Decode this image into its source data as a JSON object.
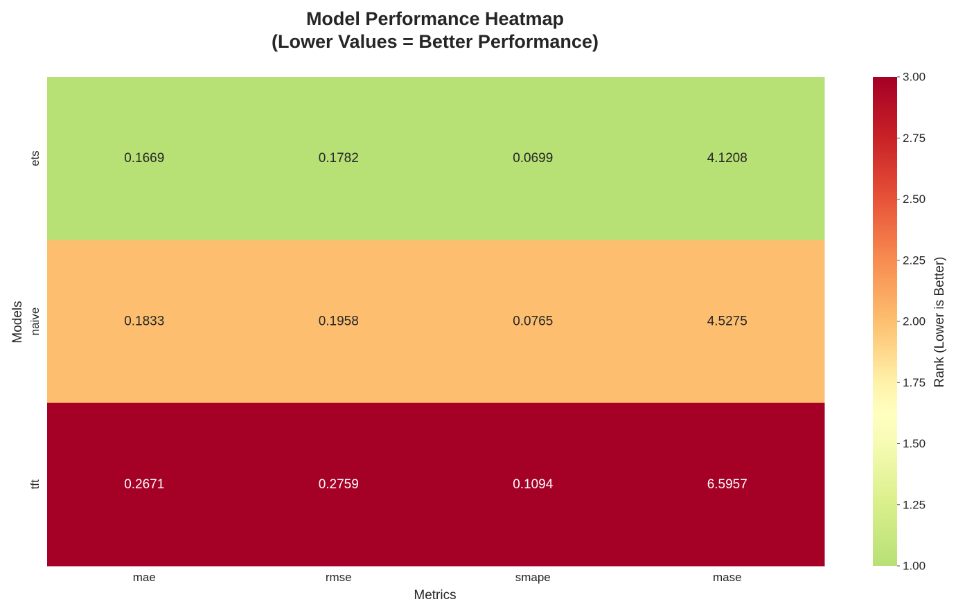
{
  "chart_data": {
    "type": "heatmap",
    "title_lines": [
      "Model Performance Heatmap",
      "(Lower Values = Better Performance)"
    ],
    "xlabel": "Metrics",
    "ylabel": "Models",
    "x_categories": [
      "mae",
      "rmse",
      "smape",
      "mase"
    ],
    "y_categories": [
      "ets",
      "naive",
      "tft"
    ],
    "values": [
      [
        0.1669,
        0.1782,
        0.0699,
        4.1208
      ],
      [
        0.1833,
        0.1958,
        0.0765,
        4.5275
      ],
      [
        0.2671,
        0.2759,
        0.1094,
        6.5957
      ]
    ],
    "row_rank": [
      1,
      2,
      3
    ],
    "colorbar": {
      "label": "Rank (Lower is Better)",
      "range": [
        1.0,
        3.0
      ],
      "ticks": [
        "1.00",
        "1.25",
        "1.50",
        "1.75",
        "2.00",
        "2.25",
        "2.50",
        "2.75",
        "3.00"
      ],
      "colormap": "RdYlGn_r (truncated)",
      "colors": {
        "low": "#b7e075",
        "mid": "#fdbf6f",
        "high": "#a50026"
      }
    },
    "grid": false
  }
}
